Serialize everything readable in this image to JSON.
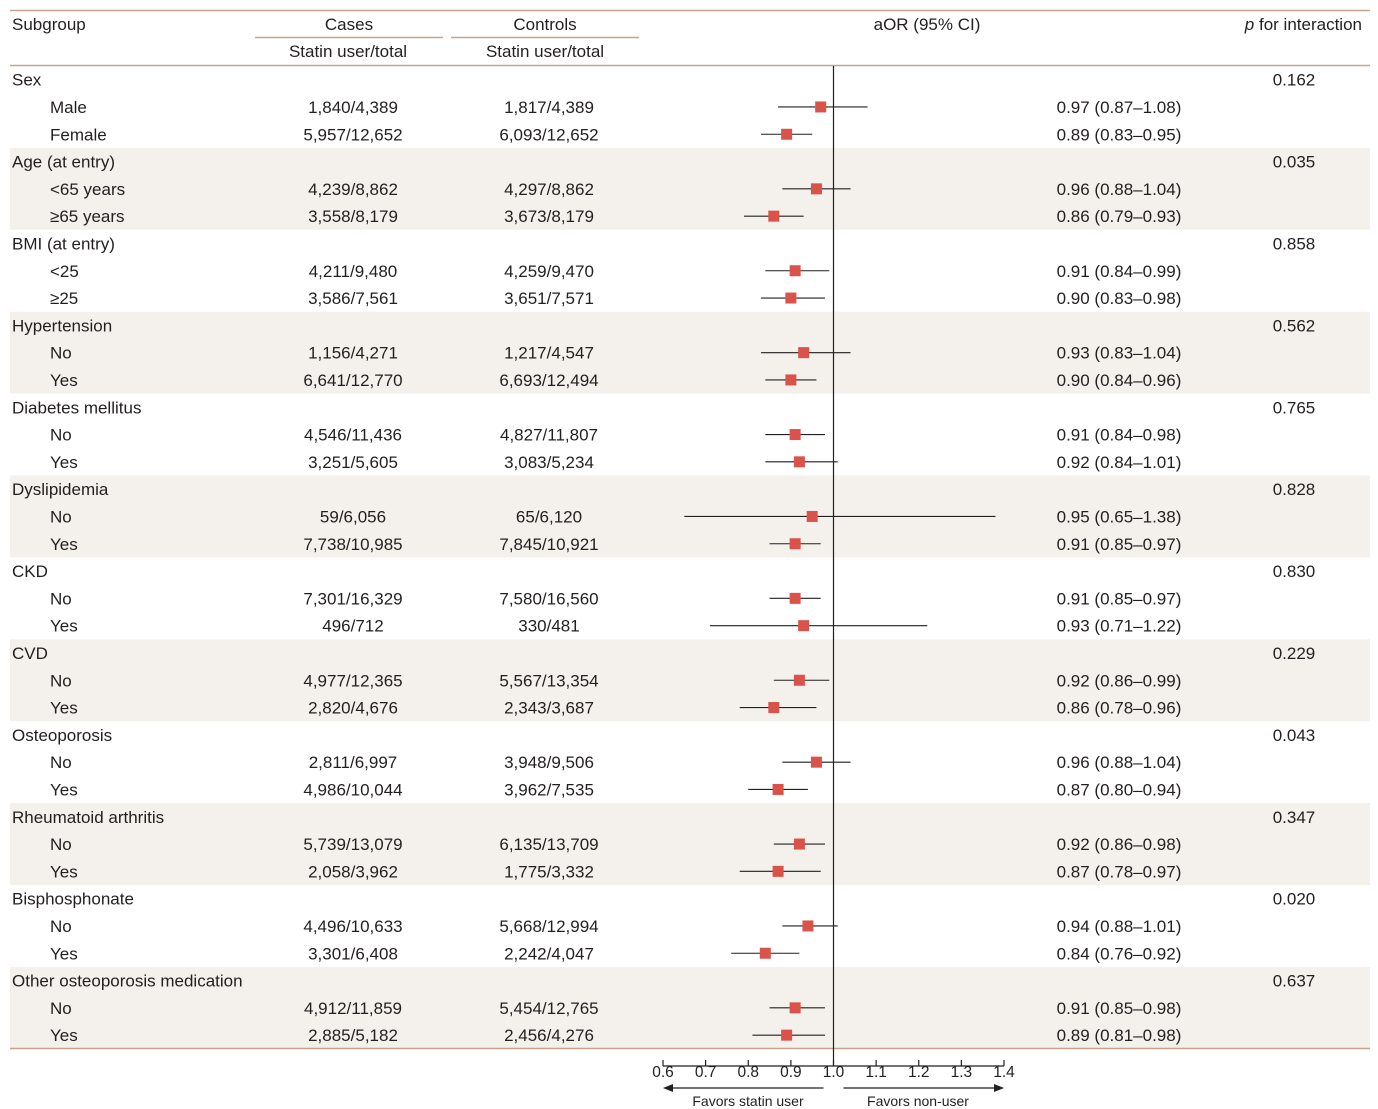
{
  "header": {
    "subgroup": "Subgroup",
    "cases": "Cases",
    "controls": "Controls",
    "cases_sub": "Statin user/total",
    "controls_sub": "Statin user/total",
    "aor": "aOR (95% CI)",
    "p_prefix": "p",
    "p_suffix": " for interaction"
  },
  "colors": {
    "marker": "#d9534a",
    "shade": "#f4f0ec",
    "rule": "#c4a48c",
    "line": "#231f20"
  },
  "chart_data": {
    "type": "forest",
    "xlim": [
      0.6,
      1.4
    ],
    "ticks": [
      "0.6",
      "0.7",
      "0.8",
      "0.9",
      "1.0",
      "1.1",
      "1.2",
      "1.3",
      "1.4"
    ],
    "reference_line": 1.0,
    "favor_left": "Favors statin user",
    "favor_right": "Favors non-user",
    "groups": [
      {
        "name": "Sex",
        "p": "0.162",
        "rows": [
          {
            "label": "Male",
            "cases": "1,840/4,389",
            "controls": "1,817/4,389",
            "or": 0.97,
            "lo": 0.87,
            "hi": 1.08,
            "ci": "0.97 (0.87–1.08)"
          },
          {
            "label": "Female",
            "cases": "5,957/12,652",
            "controls": "6,093/12,652",
            "or": 0.89,
            "lo": 0.83,
            "hi": 0.95,
            "ci": "0.89 (0.83–0.95)"
          }
        ]
      },
      {
        "name": "Age (at entry)",
        "p": "0.035",
        "rows": [
          {
            "label": "<65 years",
            "cases": "4,239/8,862",
            "controls": "4,297/8,862",
            "or": 0.96,
            "lo": 0.88,
            "hi": 1.04,
            "ci": "0.96 (0.88–1.04)"
          },
          {
            "label": "≥65 years",
            "cases": "3,558/8,179",
            "controls": "3,673/8,179",
            "or": 0.86,
            "lo": 0.79,
            "hi": 0.93,
            "ci": "0.86 (0.79–0.93)"
          }
        ]
      },
      {
        "name": "BMI (at entry)",
        "p": "0.858",
        "rows": [
          {
            "label": "<25",
            "cases": "4,211/9,480",
            "controls": "4,259/9,470",
            "or": 0.91,
            "lo": 0.84,
            "hi": 0.99,
            "ci": "0.91 (0.84–0.99)"
          },
          {
            "label": "≥25",
            "cases": "3,586/7,561",
            "controls": "3,651/7,571",
            "or": 0.9,
            "lo": 0.83,
            "hi": 0.98,
            "ci": "0.90 (0.83–0.98)"
          }
        ]
      },
      {
        "name": "Hypertension",
        "p": "0.562",
        "rows": [
          {
            "label": "No",
            "cases": "1,156/4,271",
            "controls": "1,217/4,547",
            "or": 0.93,
            "lo": 0.83,
            "hi": 1.04,
            "ci": "0.93 (0.83–1.04)"
          },
          {
            "label": "Yes",
            "cases": "6,641/12,770",
            "controls": "6,693/12,494",
            "or": 0.9,
            "lo": 0.84,
            "hi": 0.96,
            "ci": "0.90 (0.84–0.96)"
          }
        ]
      },
      {
        "name": "Diabetes mellitus",
        "p": "0.765",
        "rows": [
          {
            "label": "No",
            "cases": "4,546/11,436",
            "controls": "4,827/11,807",
            "or": 0.91,
            "lo": 0.84,
            "hi": 0.98,
            "ci": "0.91 (0.84–0.98)"
          },
          {
            "label": "Yes",
            "cases": "3,251/5,605",
            "controls": "3,083/5,234",
            "or": 0.92,
            "lo": 0.84,
            "hi": 1.01,
            "ci": "0.92 (0.84–1.01)"
          }
        ]
      },
      {
        "name": "Dyslipidemia",
        "p": "0.828",
        "rows": [
          {
            "label": "No",
            "cases": "59/6,056",
            "controls": "65/6,120",
            "or": 0.95,
            "lo": 0.65,
            "hi": 1.38,
            "ci": "0.95 (0.65–1.38)"
          },
          {
            "label": "Yes",
            "cases": "7,738/10,985",
            "controls": "7,845/10,921",
            "or": 0.91,
            "lo": 0.85,
            "hi": 0.97,
            "ci": "0.91 (0.85–0.97)"
          }
        ]
      },
      {
        "name": "CKD",
        "p": "0.830",
        "rows": [
          {
            "label": "No",
            "cases": "7,301/16,329",
            "controls": "7,580/16,560",
            "or": 0.91,
            "lo": 0.85,
            "hi": 0.97,
            "ci": "0.91 (0.85–0.97)"
          },
          {
            "label": "Yes",
            "cases": "496/712",
            "controls": "330/481",
            "or": 0.93,
            "lo": 0.71,
            "hi": 1.22,
            "ci": "0.93 (0.71–1.22)"
          }
        ]
      },
      {
        "name": "CVD",
        "p": "0.229",
        "rows": [
          {
            "label": "No",
            "cases": "4,977/12,365",
            "controls": "5,567/13,354",
            "or": 0.92,
            "lo": 0.86,
            "hi": 0.99,
            "ci": "0.92 (0.86–0.99)"
          },
          {
            "label": "Yes",
            "cases": "2,820/4,676",
            "controls": "2,343/3,687",
            "or": 0.86,
            "lo": 0.78,
            "hi": 0.96,
            "ci": "0.86 (0.78–0.96)"
          }
        ]
      },
      {
        "name": "Osteoporosis",
        "p": "0.043",
        "rows": [
          {
            "label": "No",
            "cases": "2,811/6,997",
            "controls": "3,948/9,506",
            "or": 0.96,
            "lo": 0.88,
            "hi": 1.04,
            "ci": "0.96 (0.88–1.04)"
          },
          {
            "label": "Yes",
            "cases": "4,986/10,044",
            "controls": "3,962/7,535",
            "or": 0.87,
            "lo": 0.8,
            "hi": 0.94,
            "ci": "0.87 (0.80–0.94)"
          }
        ]
      },
      {
        "name": "Rheumatoid arthritis",
        "p": "0.347",
        "rows": [
          {
            "label": "No",
            "cases": "5,739/13,079",
            "controls": "6,135/13,709",
            "or": 0.92,
            "lo": 0.86,
            "hi": 0.98,
            "ci": "0.92 (0.86–0.98)"
          },
          {
            "label": "Yes",
            "cases": "2,058/3,962",
            "controls": "1,775/3,332",
            "or": 0.87,
            "lo": 0.78,
            "hi": 0.97,
            "ci": "0.87 (0.78–0.97)"
          }
        ]
      },
      {
        "name": "Bisphosphonate",
        "p": "0.020",
        "rows": [
          {
            "label": "No",
            "cases": "4,496/10,633",
            "controls": "5,668/12,994",
            "or": 0.94,
            "lo": 0.88,
            "hi": 1.01,
            "ci": "0.94 (0.88–1.01)"
          },
          {
            "label": "Yes",
            "cases": "3,301/6,408",
            "controls": "2,242/4,047",
            "or": 0.84,
            "lo": 0.76,
            "hi": 0.92,
            "ci": "0.84 (0.76–0.92)"
          }
        ]
      },
      {
        "name": "Other osteoporosis medication",
        "p": "0.637",
        "rows": [
          {
            "label": "No",
            "cases": "4,912/11,859",
            "controls": "5,454/12,765",
            "or": 0.91,
            "lo": 0.85,
            "hi": 0.98,
            "ci": "0.91 (0.85–0.98)"
          },
          {
            "label": "Yes",
            "cases": "2,885/5,182",
            "controls": "2,456/4,276",
            "or": 0.89,
            "lo": 0.81,
            "hi": 0.98,
            "ci": "0.89 (0.81–0.98)"
          }
        ]
      }
    ]
  }
}
